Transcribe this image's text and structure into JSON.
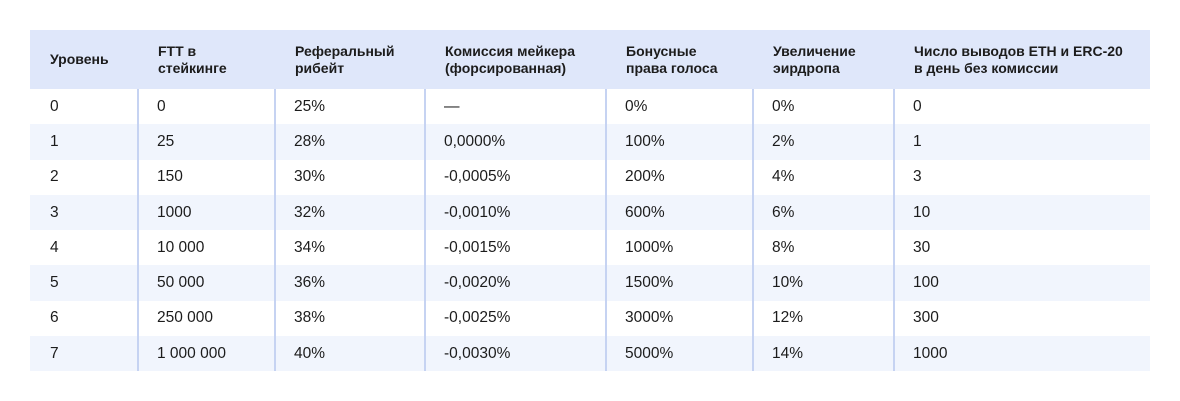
{
  "table": {
    "headers": [
      [
        "Уровень"
      ],
      [
        "FTT в",
        "стейкинге"
      ],
      [
        "Реферальный",
        "рибейт"
      ],
      [
        "Комиссия мейкера",
        "(форсированная)"
      ],
      [
        "Бонусные",
        "права голоса"
      ],
      [
        "Увеличение",
        "эирдропа"
      ],
      [
        "Число выводов ETH и ERC-20",
        "в день без комиссии"
      ]
    ],
    "rows": [
      [
        "0",
        "0",
        "25%",
        "—",
        "0%",
        "0%",
        "0"
      ],
      [
        "1",
        "25",
        "28%",
        "0,0000%",
        "100%",
        "2%",
        "1"
      ],
      [
        "2",
        "150",
        "30%",
        "-0,0005%",
        "200%",
        "4%",
        "3"
      ],
      [
        "3",
        "1000",
        "32%",
        "-0,0010%",
        "600%",
        "6%",
        "10"
      ],
      [
        "4",
        "10 000",
        "34%",
        "-0,0015%",
        "1000%",
        "8%",
        "30"
      ],
      [
        "5",
        "50 000",
        "36%",
        "-0,0020%",
        "1500%",
        "10%",
        "100"
      ],
      [
        "6",
        "250 000",
        "38%",
        "-0,0025%",
        "3000%",
        "12%",
        "300"
      ],
      [
        "7",
        "1 000 000",
        "40%",
        "-0,0030%",
        "5000%",
        "14%",
        "1000"
      ]
    ]
  }
}
